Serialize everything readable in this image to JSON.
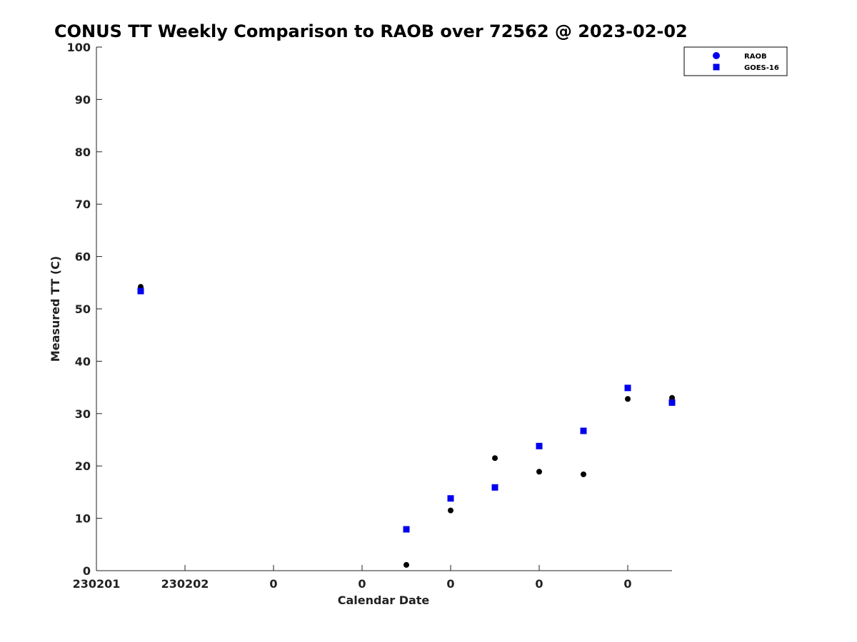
{
  "chart_data": {
    "type": "scatter",
    "title": "CONUS TT Weekly Comparison to RAOB over 72562 @ 2023-02-02",
    "xlabel": "Calendar Date",
    "ylabel": "Measured TT (C)",
    "ylim": [
      0,
      100
    ],
    "yticks": [
      0,
      10,
      20,
      30,
      40,
      50,
      60,
      70,
      80,
      90,
      100
    ],
    "xlim": [
      0,
      6.5
    ],
    "xticks": [
      0,
      1,
      2,
      3,
      4,
      5,
      6
    ],
    "xtick_labels": [
      "230201",
      "230202",
      "0",
      "0",
      "0",
      "0",
      "0"
    ],
    "legend_position": "top-right",
    "series": [
      {
        "name": "RAOB",
        "marker": "circle",
        "color": "#000000",
        "legend_color": "#0000ee",
        "x": [
          0.5,
          3.5,
          4.0,
          4.5,
          5.0,
          5.5,
          6.0,
          6.5
        ],
        "y": [
          54.2,
          1.1,
          11.5,
          21.5,
          18.9,
          18.4,
          32.8,
          33.0
        ]
      },
      {
        "name": "GOES-16",
        "marker": "square",
        "color": "#0000ee",
        "legend_color": "#0000ee",
        "x": [
          0.5,
          3.5,
          4.0,
          4.5,
          5.0,
          5.5,
          6.0,
          6.5
        ],
        "y": [
          53.4,
          7.9,
          13.8,
          15.9,
          23.8,
          26.7,
          34.9,
          32.1
        ]
      }
    ]
  }
}
